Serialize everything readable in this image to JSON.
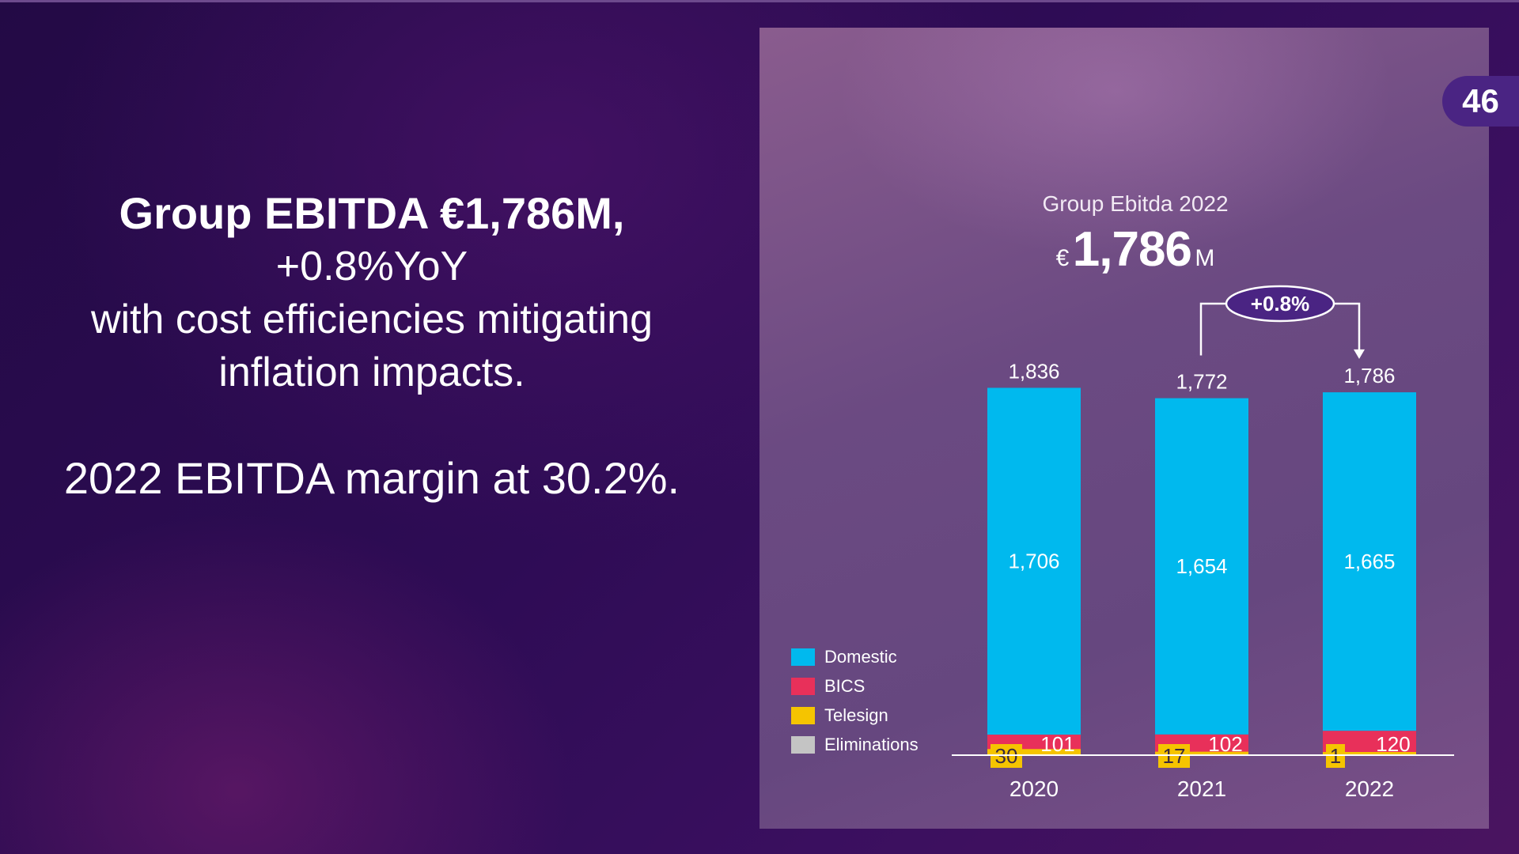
{
  "page_number": "46",
  "headline": {
    "line1": "Group EBITDA €1,786M,",
    "line2": "+0.8%YoY",
    "line3": "with cost efficiencies mitigating",
    "line4": "inflation impacts."
  },
  "margin_statement": "2022 EBITDA margin at 30.2%.",
  "chart_header": {
    "subtitle": "Group Ebitda 2022",
    "currency": "€",
    "value": "1,786",
    "unit": "M"
  },
  "chart_data": {
    "type": "bar",
    "stacked": true,
    "categories": [
      "2020",
      "2021",
      "2022"
    ],
    "series": [
      {
        "name": "Domestic",
        "values": [
          1706,
          1654,
          1665
        ],
        "color": "#00b9ee"
      },
      {
        "name": "BICS",
        "values": [
          101,
          102,
          120
        ],
        "color": "#e8305a"
      },
      {
        "name": "Telesign",
        "values": [
          30,
          17,
          1
        ],
        "color": "#f5c400"
      },
      {
        "name": "Eliminations",
        "values": [
          null,
          null,
          null
        ],
        "color": "#c4c4c4"
      }
    ],
    "totals": [
      1836,
      1772,
      1786
    ],
    "total_labels": [
      "1,836",
      "1,772",
      "1,786"
    ],
    "domestic_labels": [
      "1,706",
      "1,654",
      "1,665"
    ],
    "bics_labels": [
      "101",
      "102",
      "120"
    ],
    "telesign_labels": [
      "30",
      "17",
      "1"
    ],
    "growth_annotation": {
      "label": "+0.8%",
      "from": "2021",
      "to": "2022"
    },
    "legend_position": "left"
  }
}
